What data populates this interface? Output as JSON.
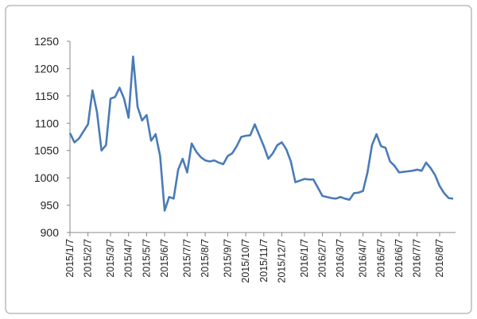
{
  "chart_data": {
    "type": "line",
    "categories": [
      "2015/1/7",
      null,
      null,
      null,
      "2015/2/7",
      null,
      null,
      null,
      null,
      "2015/3/7",
      null,
      null,
      null,
      "2015/4/7",
      null,
      null,
      null,
      "2015/5/7",
      null,
      null,
      null,
      "2015/6/7",
      null,
      null,
      null,
      null,
      "2015/7/7",
      null,
      null,
      null,
      "2015/8/7",
      null,
      null,
      null,
      null,
      "2015/9/7",
      null,
      null,
      null,
      "2015/10/7",
      null,
      null,
      null,
      "2015/11/7",
      null,
      null,
      null,
      "2015/12/7",
      null,
      null,
      null,
      null,
      "2016/1/7",
      null,
      null,
      null,
      "2016/2/7",
      null,
      null,
      null,
      "2016/3/7",
      null,
      null,
      null,
      null,
      "2016/4/7",
      null,
      null,
      null,
      "2016/5/7",
      null,
      null,
      null,
      "2016/6/7",
      null,
      null,
      null,
      "2016/7/7",
      null,
      null,
      null,
      null,
      "2016/8/7",
      null,
      null,
      null
    ],
    "series": [
      {
        "name": null,
        "color": "#4a7bb7",
        "values": [
          1082,
          1065,
          1072,
          1085,
          1098,
          1160,
          1120,
          1050,
          1060,
          1145,
          1148,
          1165,
          1145,
          1110,
          1222,
          1130,
          1105,
          1115,
          1068,
          1080,
          1040,
          940,
          965,
          962,
          1015,
          1035,
          1010,
          1063,
          1048,
          1038,
          1032,
          1030,
          1032,
          1028,
          1025,
          1040,
          1045,
          1058,
          1075,
          1077,
          1078,
          1098,
          1078,
          1058,
          1035,
          1045,
          1060,
          1065,
          1052,
          1030,
          992,
          995,
          998,
          997,
          997,
          982,
          967,
          965,
          963,
          962,
          965,
          962,
          960,
          972,
          973,
          976,
          1010,
          1060,
          1080,
          1058,
          1055,
          1030,
          1022,
          1010,
          1011,
          1012,
          1013,
          1015,
          1013,
          1028,
          1018,
          1005,
          985,
          972,
          963,
          962
        ]
      }
    ],
    "ylim": [
      900,
      1250
    ],
    "yticks": [
      900,
      950,
      1000,
      1050,
      1100,
      1150,
      1200,
      1250
    ],
    "grid": false
  }
}
